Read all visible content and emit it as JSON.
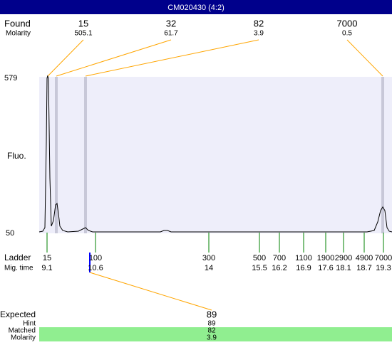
{
  "header": {
    "title": "CM020430 (4:2)"
  },
  "found": {
    "label": "Found",
    "sub_label": "Molarity",
    "peaks": [
      {
        "size": "15",
        "molarity": "505.1"
      },
      {
        "size": "32",
        "molarity": "61.7"
      },
      {
        "size": "82",
        "molarity": "3.9"
      },
      {
        "size": "7000",
        "molarity": "0.5"
      }
    ]
  },
  "plot": {
    "y_label": "Fluo.",
    "y_top": "579",
    "y_bottom": "50"
  },
  "ladder": {
    "label": "Ladder",
    "sub_label": "Mig. time",
    "entries": [
      {
        "size": "15",
        "time": "9.1"
      },
      {
        "size": "100",
        "time": "10.6"
      },
      {
        "size": "300",
        "time": "14"
      },
      {
        "size": "500",
        "time": "15.5"
      },
      {
        "size": "700",
        "time": "16.2"
      },
      {
        "size": "1100",
        "time": "16.9"
      },
      {
        "size": "1900",
        "time": "17.6"
      },
      {
        "size": "2900",
        "time": "18.1"
      },
      {
        "size": "4900",
        "time": "18.7"
      },
      {
        "size": "7000",
        "time": "19.3"
      }
    ]
  },
  "expected": {
    "label": "Expected",
    "value": "89",
    "rows": [
      {
        "label": "Hint",
        "value": "89"
      },
      {
        "label": "Matched",
        "value": "82"
      },
      {
        "label": "Molarity",
        "value": "3.9"
      }
    ]
  }
}
